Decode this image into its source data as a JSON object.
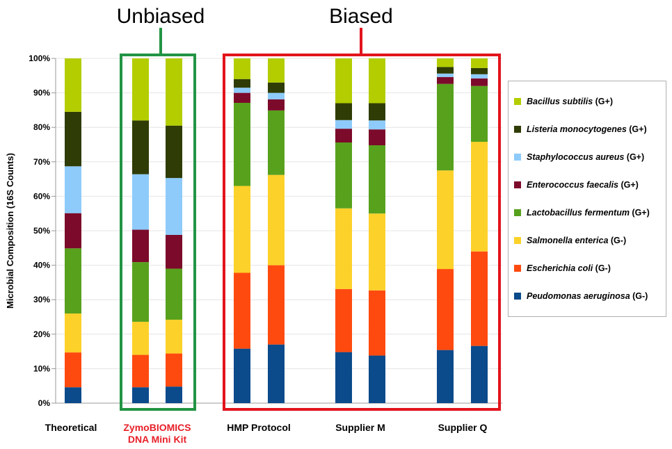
{
  "chart_data": {
    "type": "bar",
    "stacked": true,
    "ylabel": "Microbial Composition (16S Counts)",
    "ylim": [
      0,
      100
    ],
    "y_ticks": [
      "0%",
      "10%",
      "20%",
      "30%",
      "40%",
      "50%",
      "60%",
      "70%",
      "80%",
      "90%",
      "100%"
    ],
    "groups": [
      {
        "label": "Theoretical",
        "label_lines": [
          "Theoretical"
        ],
        "color": "#000000",
        "bars": 1
      },
      {
        "label": "ZymoBIOMICS DNA Mini Kit",
        "label_lines": [
          "ZymoBIOMICS",
          "DNA Mini Kit"
        ],
        "color": "#e8202a",
        "bars": 2
      },
      {
        "label": "HMP Protocol",
        "label_lines": [
          "HMP Protocol"
        ],
        "color": "#000000",
        "bars": 2
      },
      {
        "label": "Supplier M",
        "label_lines": [
          "Supplier M"
        ],
        "color": "#000000",
        "bars": 2
      },
      {
        "label": "Supplier Q",
        "label_lines": [
          "Supplier Q"
        ],
        "color": "#000000",
        "bars": 2
      }
    ],
    "series": [
      {
        "name": "Peudomonas aeruginosa",
        "tag": "(G-)",
        "color": "#0b4a8b",
        "values": [
          4.6,
          4.6,
          4.8,
          15.8,
          17.0,
          14.8,
          13.8,
          15.4,
          16.6
        ]
      },
      {
        "name": "Escherichia coli",
        "tag": "(G-)",
        "color": "#ff4a0f",
        "values": [
          10.1,
          9.4,
          9.6,
          22.0,
          23.0,
          18.3,
          18.9,
          23.5,
          27.4
        ]
      },
      {
        "name": "Salmonella enterica",
        "tag": "(G-)",
        "color": "#fcd12a",
        "values": [
          11.3,
          9.6,
          9.8,
          25.2,
          26.2,
          23.4,
          22.3,
          28.6,
          31.8
        ]
      },
      {
        "name": "Lactobacillus fermentum",
        "tag": "(G+)",
        "color": "#58a11d",
        "values": [
          18.9,
          17.3,
          14.8,
          24.1,
          18.7,
          19.1,
          19.8,
          25.1,
          16.2
        ]
      },
      {
        "name": "Enterococcus faecalis",
        "tag": "(G+)",
        "color": "#7c0a2a",
        "values": [
          10.2,
          9.4,
          9.8,
          2.9,
          3.2,
          4.0,
          4.6,
          2.0,
          2.2
        ]
      },
      {
        "name": "Staphylococcus aureus",
        "tag": "(G+)",
        "color": "#8ecbfa",
        "values": [
          13.6,
          16.1,
          16.5,
          1.5,
          1.9,
          2.5,
          2.6,
          1.0,
          1.2
        ]
      },
      {
        "name": "Listeria monocytogenes",
        "tag": "(G+)",
        "color": "#2f3c05",
        "values": [
          15.8,
          15.6,
          15.2,
          2.5,
          3.0,
          4.9,
          5.0,
          1.9,
          1.8
        ]
      },
      {
        "name": "Bacillus subtilis",
        "tag": "(G+)",
        "color": "#b3cd00",
        "values": [
          15.5,
          18.0,
          19.5,
          6.0,
          7.0,
          13.0,
          13.0,
          2.5,
          2.8
        ]
      }
    ],
    "legend_position": "right",
    "annotations": [
      {
        "text": "Unbiased",
        "color": "#229444"
      },
      {
        "text": "Biased",
        "color": "#e2141c"
      }
    ]
  }
}
